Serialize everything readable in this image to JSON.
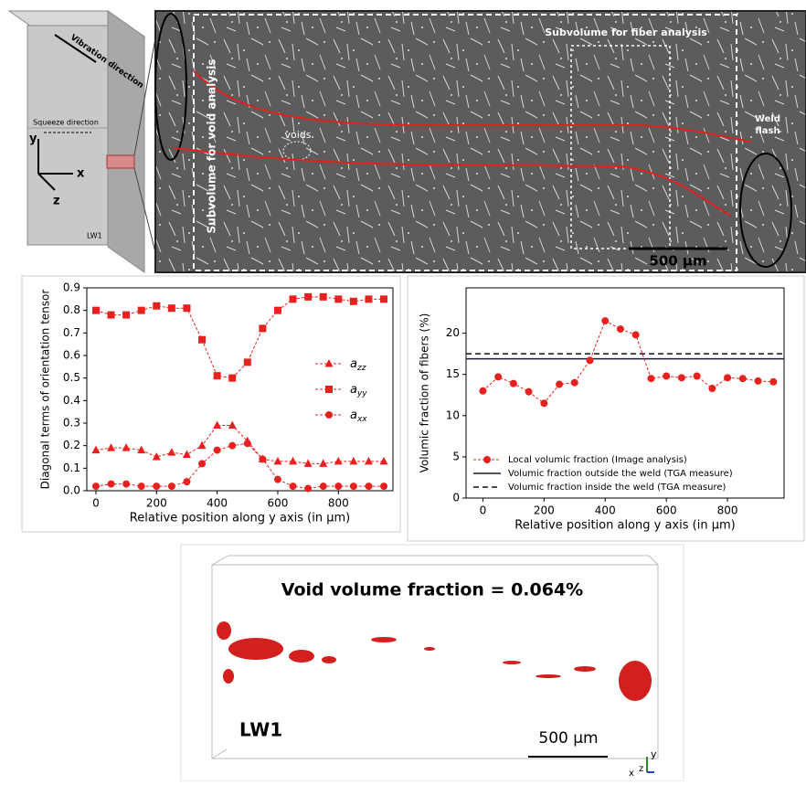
{
  "schematic": {
    "vibration": "Vibration direction",
    "squeeze": "Squeeze direction",
    "axis_y": "y",
    "axis_x": "x",
    "axis_z": "z",
    "sample": "LW1"
  },
  "micrograph": {
    "void_subvolume": "Subvolume for void analysis",
    "fiber_subvolume": "Subvolume for fiber analysis",
    "voids": "voids",
    "weld_flash": "Weld\nflash",
    "scale": "500 µm"
  },
  "chart_data": [
    {
      "type": "line",
      "xlabel": "Relative position along y axis (in μm)",
      "ylabel": "Diagonal terms of orientation tensor",
      "x": [
        0,
        50,
        100,
        150,
        200,
        250,
        300,
        350,
        400,
        450,
        500,
        550,
        600,
        650,
        700,
        750,
        800,
        850,
        900,
        950
      ],
      "series": [
        {
          "name": "axx",
          "color": "#e8211e",
          "marker": "circle",
          "values": [
            0.02,
            0.03,
            0.03,
            0.02,
            0.02,
            0.02,
            0.04,
            0.12,
            0.18,
            0.2,
            0.21,
            0.14,
            0.05,
            0.02,
            0.01,
            0.02,
            0.02,
            0.02,
            0.02,
            0.02
          ]
        },
        {
          "name": "ayy",
          "color": "#e8211e",
          "marker": "square",
          "values": [
            0.8,
            0.78,
            0.78,
            0.8,
            0.82,
            0.81,
            0.81,
            0.67,
            0.51,
            0.5,
            0.57,
            0.72,
            0.8,
            0.85,
            0.86,
            0.86,
            0.85,
            0.84,
            0.85,
            0.85
          ]
        },
        {
          "name": "azz",
          "color": "#e8211e",
          "marker": "triangle",
          "values": [
            0.18,
            0.19,
            0.19,
            0.18,
            0.15,
            0.17,
            0.16,
            0.2,
            0.29,
            0.29,
            0.22,
            0.14,
            0.13,
            0.13,
            0.12,
            0.12,
            0.13,
            0.13,
            0.13,
            0.13
          ]
        }
      ],
      "xlim": [
        -30,
        980
      ],
      "xticks": [
        0,
        200,
        400,
        600,
        800
      ],
      "ylim": [
        0,
        0.9
      ],
      "yticks": [
        {
          "value": 0,
          "label": "0.0"
        },
        0.1,
        0.2,
        0.3,
        0.4,
        0.5,
        0.6,
        0.7,
        0.8,
        0.9
      ],
      "legend": "center right",
      "dashed": true
    },
    {
      "type": "line",
      "xlabel": "Relative position along y axis (in μm)",
      "ylabel": "Volumic fraction of fibers (%)",
      "x": [
        0,
        50,
        100,
        150,
        200,
        250,
        300,
        350,
        400,
        450,
        500,
        550,
        600,
        650,
        700,
        750,
        800,
        850,
        900,
        950
      ],
      "series": [
        {
          "name": "Local volumic fraction (Image analysis)",
          "color": "#e8211e",
          "marker": "circle",
          "values": [
            13.0,
            14.7,
            13.9,
            12.9,
            11.5,
            13.8,
            14.0,
            16.7,
            21.5,
            20.5,
            19.8,
            14.5,
            14.8,
            14.6,
            14.8,
            13.3,
            14.6,
            14.5,
            14.2,
            14.1
          ]
        }
      ],
      "hlines": [
        {
          "name": "Volumic fraction outside the weld (TGA measure)",
          "value": 16.9,
          "color": "#1a1a3a",
          "dash": false
        },
        {
          "name": "Volumic fraction inside the weld (TGA measure)",
          "value": 17.5,
          "color": "#111111",
          "dash": true
        }
      ],
      "xlim": [
        -55,
        985
      ],
      "xticks": [
        0,
        200,
        400,
        600,
        800
      ],
      "ylim": [
        0,
        25.5
      ],
      "yticks": [
        0,
        5,
        10,
        15,
        20
      ],
      "legend": "lower left",
      "dashed": true
    }
  ],
  "void_panel": {
    "title": "Void volume fraction = 0.064%",
    "sample": "LW1",
    "scale": "500 µm",
    "axis_y": "y",
    "axis_x": "x",
    "axis_z": "z"
  }
}
